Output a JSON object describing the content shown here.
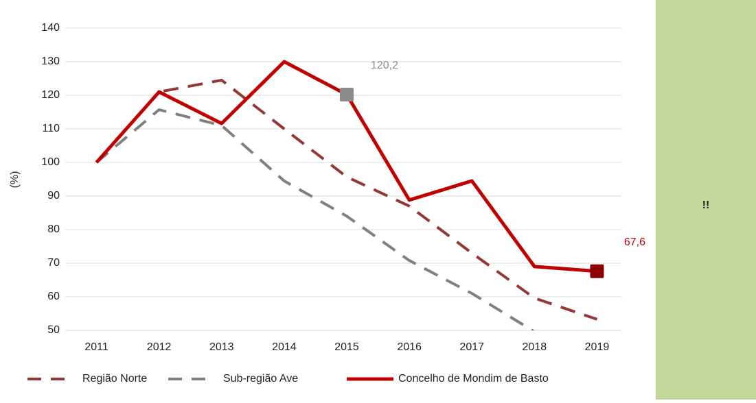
{
  "chart_data": {
    "type": "line",
    "categories": [
      "2011",
      "2012",
      "2013",
      "2014",
      "2015",
      "2016",
      "2017",
      "2018",
      "2019"
    ],
    "y_label": "(%)",
    "ylim": [
      50,
      140
    ],
    "yticks": [
      50,
      60,
      70,
      80,
      90,
      100,
      110,
      120,
      130,
      140
    ],
    "grid": true,
    "legend": "bottom",
    "series": [
      {
        "name": "Região Norte",
        "color": "#953735",
        "dashed": true,
        "values": [
          100,
          121,
          124.5,
          110,
          95.7,
          87,
          73,
          59.6,
          53.3
        ]
      },
      {
        "name": "Sub-região Ave",
        "color": "#808080",
        "dashed": true,
        "values": [
          100,
          115.7,
          111,
          94.5,
          84,
          70.8,
          61,
          49.6,
          null
        ]
      },
      {
        "name": "Concelho de Mondim de Basto",
        "color": "#c00000",
        "dashed": false,
        "values": [
          100,
          121,
          111.6,
          130,
          120.2,
          88.8,
          94.5,
          69,
          67.6
        ],
        "value_labels": [
          null,
          null,
          null,
          null,
          "120,2",
          null,
          null,
          null,
          "67,6"
        ],
        "marker_colors": [
          null,
          null,
          null,
          null,
          "#8c8c8c",
          null,
          null,
          null,
          "#8b0000"
        ]
      }
    ]
  },
  "side_panel": {
    "text": "!!",
    "color": "#c4d79b"
  }
}
